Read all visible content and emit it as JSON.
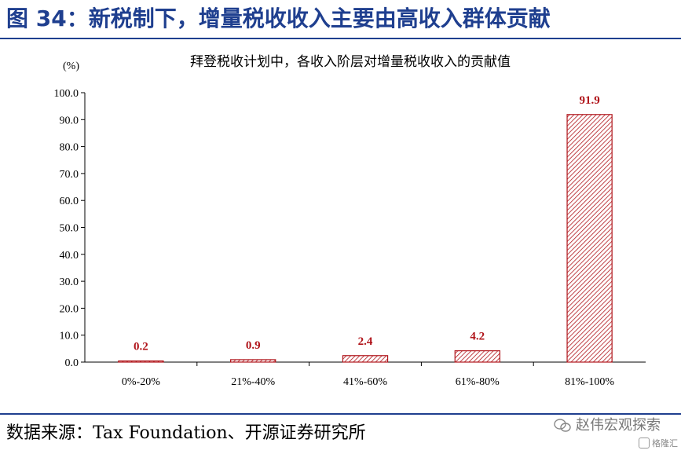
{
  "figure": {
    "title": "图 34：新税制下，增量税收收入主要由高收入群体贡献",
    "source": "数据来源：Tax Foundation、开源证券研究所",
    "watermark": "赵伟宏观探索",
    "watermark_small": "格隆汇",
    "accent_color": "#1f3f8f"
  },
  "chart_data": {
    "type": "bar",
    "title": "拜登税收计划中，各收入阶层对增量税收收入的贡献值",
    "unit": "(%)",
    "xlabel": "",
    "ylabel": "",
    "categories": [
      "0%-20%",
      "21%-40%",
      "41%-60%",
      "61%-80%",
      "81%-100%"
    ],
    "series": [
      {
        "values": [
          0.2,
          0.9,
          2.4,
          4.2,
          91.9
        ]
      }
    ],
    "value_labels": [
      "0.2",
      "0.9",
      "2.4",
      "4.2",
      "91.9"
    ],
    "y_ticks": [
      "0.0",
      "10.0",
      "20.0",
      "30.0",
      "40.0",
      "50.0",
      "60.0",
      "70.0",
      "80.0",
      "90.0",
      "100.0"
    ],
    "ylim": [
      0,
      100
    ],
    "grid": false,
    "legend": "none",
    "bar_color": "#b0141a",
    "bar_fill": "hatched",
    "label_color": "#b0141a"
  }
}
